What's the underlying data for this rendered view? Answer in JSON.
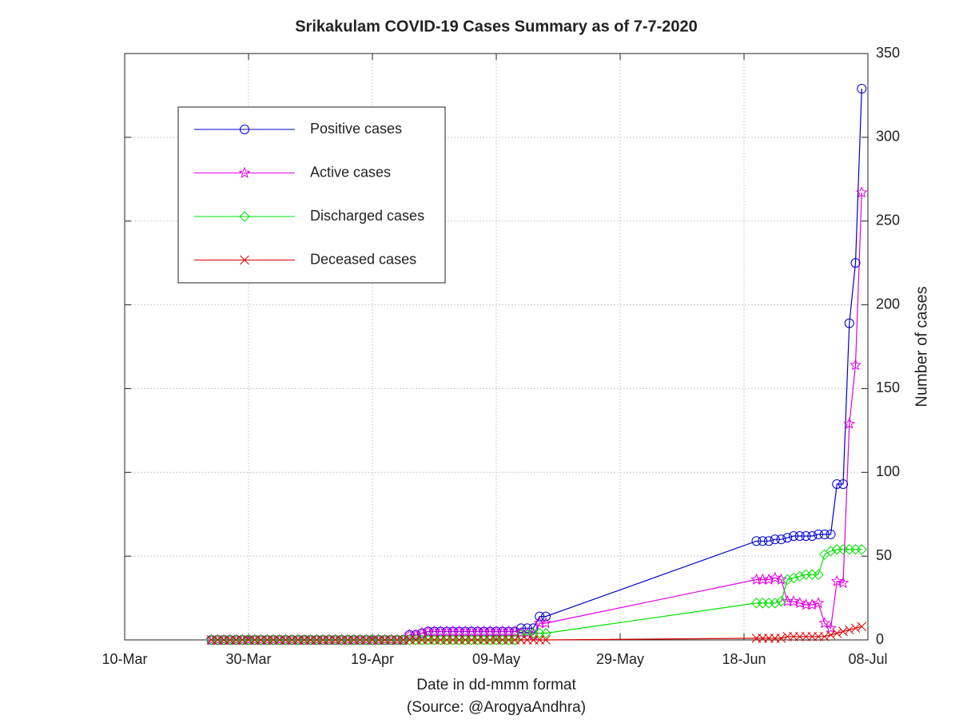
{
  "chart_data": {
    "type": "line",
    "title": "Srikakulam COVID-19 Cases Summary as of 7-7-2020",
    "x_label": "Date in dd-mmm format",
    "x_sublabel": "(Source: @ArogyaAndhra)",
    "y_label": "Number of cases",
    "x": [
      "24-Mar",
      "25-Mar",
      "26-Mar",
      "27-Mar",
      "28-Mar",
      "29-Mar",
      "30-Mar",
      "31-Mar",
      "01-Apr",
      "02-Apr",
      "03-Apr",
      "04-Apr",
      "05-Apr",
      "06-Apr",
      "07-Apr",
      "08-Apr",
      "09-Apr",
      "10-Apr",
      "11-Apr",
      "12-Apr",
      "13-Apr",
      "14-Apr",
      "15-Apr",
      "16-Apr",
      "17-Apr",
      "18-Apr",
      "19-Apr",
      "20-Apr",
      "21-Apr",
      "22-Apr",
      "23-Apr",
      "24-Apr",
      "25-Apr",
      "26-Apr",
      "27-Apr",
      "28-Apr",
      "29-Apr",
      "30-Apr",
      "01-May",
      "02-May",
      "03-May",
      "04-May",
      "05-May",
      "06-May",
      "07-May",
      "08-May",
      "09-May",
      "10-May",
      "11-May",
      "12-May",
      "13-May",
      "14-May",
      "15-May",
      "16-May",
      "17-May",
      "20-Jun",
      "21-Jun",
      "22-Jun",
      "23-Jun",
      "24-Jun",
      "25-Jun",
      "26-Jun",
      "27-Jun",
      "28-Jun",
      "29-Jun",
      "30-Jun",
      "01-Jul",
      "02-Jul",
      "03-Jul",
      "04-Jul",
      "05-Jul",
      "06-Jul",
      "07-Jul"
    ],
    "series": [
      {
        "name": "Positive cases",
        "color": "#0000cc",
        "marker": "circle",
        "values": [
          0,
          0,
          0,
          0,
          0,
          0,
          0,
          0,
          0,
          0,
          0,
          0,
          0,
          0,
          0,
          0,
          0,
          0,
          0,
          0,
          0,
          0,
          0,
          0,
          0,
          0,
          0,
          0,
          0,
          0,
          0,
          0,
          3,
          3,
          4,
          5,
          5,
          5,
          5,
          5,
          5,
          5,
          5,
          5,
          5,
          5,
          5,
          5,
          5,
          5,
          7,
          7,
          7,
          14,
          14,
          59,
          59,
          59,
          60,
          60,
          61,
          62,
          62,
          62,
          62,
          63,
          63,
          63,
          93,
          93,
          189,
          225,
          329
        ]
      },
      {
        "name": "Active cases",
        "color": "#e000e0",
        "marker": "star",
        "values": [
          0,
          0,
          0,
          0,
          0,
          0,
          0,
          0,
          0,
          0,
          0,
          0,
          0,
          0,
          0,
          0,
          0,
          0,
          0,
          0,
          0,
          0,
          0,
          0,
          0,
          0,
          0,
          0,
          0,
          0,
          0,
          0,
          3,
          3,
          4,
          5,
          5,
          5,
          5,
          5,
          5,
          5,
          5,
          5,
          5,
          5,
          5,
          5,
          5,
          5,
          4,
          4,
          3,
          10,
          10,
          36,
          36,
          36,
          37,
          36,
          23,
          23,
          22,
          21,
          21,
          22,
          10,
          7,
          35,
          34,
          129,
          164,
          267
        ]
      },
      {
        "name": "Discharged cases",
        "color": "#00e000",
        "marker": "diamond",
        "values": [
          0,
          0,
          0,
          0,
          0,
          0,
          0,
          0,
          0,
          0,
          0,
          0,
          0,
          0,
          0,
          0,
          0,
          0,
          0,
          0,
          0,
          0,
          0,
          0,
          0,
          0,
          0,
          0,
          0,
          0,
          0,
          0,
          0,
          0,
          0,
          0,
          0,
          0,
          0,
          0,
          0,
          0,
          0,
          0,
          0,
          0,
          0,
          0,
          0,
          0,
          3,
          3,
          4,
          4,
          4,
          22,
          22,
          22,
          22,
          23,
          36,
          37,
          38,
          39,
          39,
          39,
          51,
          53,
          54,
          54,
          54,
          54,
          54
        ]
      },
      {
        "name": "Deceased cases",
        "color": "#dd0000",
        "marker": "cross",
        "values": [
          0,
          0,
          0,
          0,
          0,
          0,
          0,
          0,
          0,
          0,
          0,
          0,
          0,
          0,
          0,
          0,
          0,
          0,
          0,
          0,
          0,
          0,
          0,
          0,
          0,
          0,
          0,
          0,
          0,
          0,
          0,
          0,
          0,
          0,
          0,
          0,
          0,
          0,
          0,
          0,
          0,
          0,
          0,
          0,
          0,
          0,
          0,
          0,
          0,
          0,
          0,
          0,
          0,
          0,
          0,
          1,
          1,
          1,
          1,
          1,
          2,
          2,
          2,
          2,
          2,
          2,
          2,
          3,
          4,
          5,
          6,
          7,
          8
        ]
      }
    ],
    "xlim": [
      "10-Mar",
      "08-Jul"
    ],
    "xticks": [
      "10-Mar",
      "30-Mar",
      "19-Apr",
      "09-May",
      "29-May",
      "18-Jun",
      "08-Jul"
    ],
    "ylim": [
      0,
      350
    ],
    "yticks": [
      0,
      50,
      100,
      150,
      200,
      250,
      300,
      350
    ],
    "y_axis_side": "right",
    "grid": true,
    "legend": "upper left"
  }
}
